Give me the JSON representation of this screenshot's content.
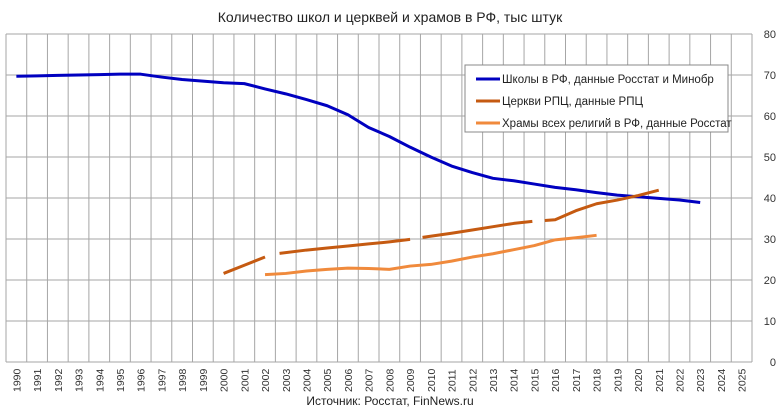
{
  "chart_data": {
    "type": "line",
    "title": "Количество школ и церквей и храмов в РФ, тыс штук",
    "source": "Источник: Росстат, FinNews.ru",
    "ylim": [
      0,
      80
    ],
    "yticks": [
      0,
      10,
      20,
      30,
      40,
      50,
      60,
      70,
      80
    ],
    "y_axis_side": "right",
    "grid": true,
    "legend_position": "top-right",
    "categories": [
      "1990",
      "1991",
      "1992",
      "1993",
      "1994",
      "1995",
      "1996",
      "1997",
      "1998",
      "1999",
      "2000",
      "2001",
      "2002",
      "2003",
      "2004",
      "2005",
      "2006",
      "2007",
      "2008",
      "2009",
      "2010",
      "2011",
      "2012",
      "2013",
      "2014",
      "2015",
      "2016",
      "2017",
      "2018",
      "2019",
      "2020",
      "2021",
      "2022",
      "2023",
      "2024",
      "2025"
    ],
    "series": [
      {
        "name": "Школы в РФ, данные Росстат и Минобр",
        "color": "#0000c0",
        "segments": [
          [
            [
              1990,
              69.7
            ],
            [
              1991,
              69.8
            ],
            [
              1992,
              69.9
            ],
            [
              1993,
              70.0
            ],
            [
              1994,
              70.1
            ],
            [
              1995,
              70.2
            ],
            [
              1996,
              70.2
            ],
            [
              1997,
              69.5
            ],
            [
              1998,
              68.9
            ],
            [
              1999,
              68.5
            ],
            [
              2000,
              68.1
            ],
            [
              2001,
              67.9
            ],
            [
              2002,
              66.6
            ],
            [
              2003,
              65.4
            ],
            [
              2004,
              64.0
            ],
            [
              2005,
              62.5
            ],
            [
              2006,
              60.3
            ],
            [
              2007,
              57.2
            ],
            [
              2008,
              55.0
            ],
            [
              2009,
              52.4
            ],
            [
              2010,
              50.0
            ],
            [
              2011,
              47.8
            ],
            [
              2012,
              46.2
            ],
            [
              2013,
              44.8
            ],
            [
              2014,
              44.2
            ],
            [
              2015,
              43.4
            ],
            [
              2016,
              42.6
            ],
            [
              2017,
              42.0
            ],
            [
              2018,
              41.3
            ],
            [
              2019,
              40.7
            ],
            [
              2020,
              40.3
            ],
            [
              2021,
              39.9
            ],
            [
              2022,
              39.5
            ],
            [
              2023,
              38.9
            ]
          ]
        ]
      },
      {
        "name": "Церкви РПЦ, данные РПЦ",
        "color": "#c55a11",
        "segments": [
          [
            [
              2000,
              21.6
            ],
            [
              2001,
              23.6
            ],
            [
              2002,
              25.6
            ]
          ],
          [
            [
              2002.7,
              26.5
            ],
            [
              2004,
              27.3
            ],
            [
              2005,
              27.8
            ],
            [
              2006,
              28.3
            ],
            [
              2007,
              28.8
            ],
            [
              2008,
              29.3
            ],
            [
              2009,
              29.9
            ]
          ],
          [
            [
              2009.6,
              30.4
            ],
            [
              2011,
              31.4
            ],
            [
              2012,
              32.2
            ],
            [
              2013,
              33.0
            ],
            [
              2014,
              33.8
            ],
            [
              2014.9,
              34.3
            ]
          ],
          [
            [
              2015.5,
              34.5
            ],
            [
              2016,
              34.7
            ],
            [
              2017,
              36.9
            ],
            [
              2018,
              38.6
            ],
            [
              2019,
              39.5
            ],
            [
              2020,
              40.6
            ],
            [
              2021,
              41.9
            ]
          ]
        ]
      },
      {
        "name": "Храмы всех религий в РФ, данные Росстат",
        "color": "#f08a3c",
        "segments": [
          [
            [
              2002,
              21.3
            ],
            [
              2003,
              21.6
            ],
            [
              2004,
              22.2
            ],
            [
              2005,
              22.6
            ],
            [
              2006,
              22.9
            ],
            [
              2007,
              22.8
            ],
            [
              2008,
              22.6
            ],
            [
              2009,
              23.4
            ],
            [
              2010,
              23.8
            ],
            [
              2011,
              24.6
            ],
            [
              2012,
              25.6
            ],
            [
              2013,
              26.4
            ],
            [
              2014,
              27.4
            ],
            [
              2015,
              28.4
            ],
            [
              2016,
              29.8
            ],
            [
              2017,
              30.3
            ],
            [
              2018,
              30.9
            ]
          ]
        ]
      }
    ]
  }
}
